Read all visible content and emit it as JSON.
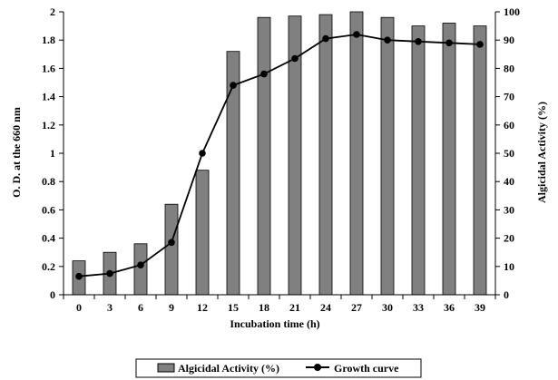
{
  "chart_data": {
    "type": "bar",
    "categories": [
      "0",
      "3",
      "6",
      "9",
      "12",
      "15",
      "18",
      "21",
      "24",
      "27",
      "30",
      "33",
      "36",
      "39"
    ],
    "x": [
      0,
      3,
      6,
      9,
      12,
      15,
      18,
      21,
      24,
      27,
      30,
      33,
      36,
      39
    ],
    "xlabel": "Incubation time (h)",
    "ylabel_left": "O. D. at the 660 nm",
    "ylabel_right": "Algicidal Activity (%)",
    "ylim_left": [
      0,
      2
    ],
    "ylim_right": [
      0,
      100
    ],
    "yticks_left": [
      "0",
      "0.2",
      "0.4",
      "0.6",
      "0.8",
      "1",
      "1.2",
      "1.4",
      "1.6",
      "1.8",
      "2"
    ],
    "yticks_right": [
      "0",
      "10",
      "20",
      "30",
      "40",
      "50",
      "60",
      "70",
      "80",
      "90",
      "100"
    ],
    "grid": false,
    "legend_position": "bottom",
    "series": [
      {
        "name": "Algicidal Activity (%)",
        "type": "bar",
        "axis": "right",
        "color": "#808080",
        "values": [
          12,
          15,
          18,
          32,
          44,
          86,
          98,
          98.5,
          99,
          100,
          98,
          95,
          96,
          95
        ]
      },
      {
        "name": "Growth curve",
        "type": "line",
        "axis": "left",
        "color": "#000000",
        "values": [
          0.13,
          0.15,
          0.21,
          0.37,
          1.0,
          1.48,
          1.56,
          1.67,
          1.81,
          1.84,
          1.8,
          1.79,
          1.78,
          1.77
        ]
      }
    ]
  }
}
